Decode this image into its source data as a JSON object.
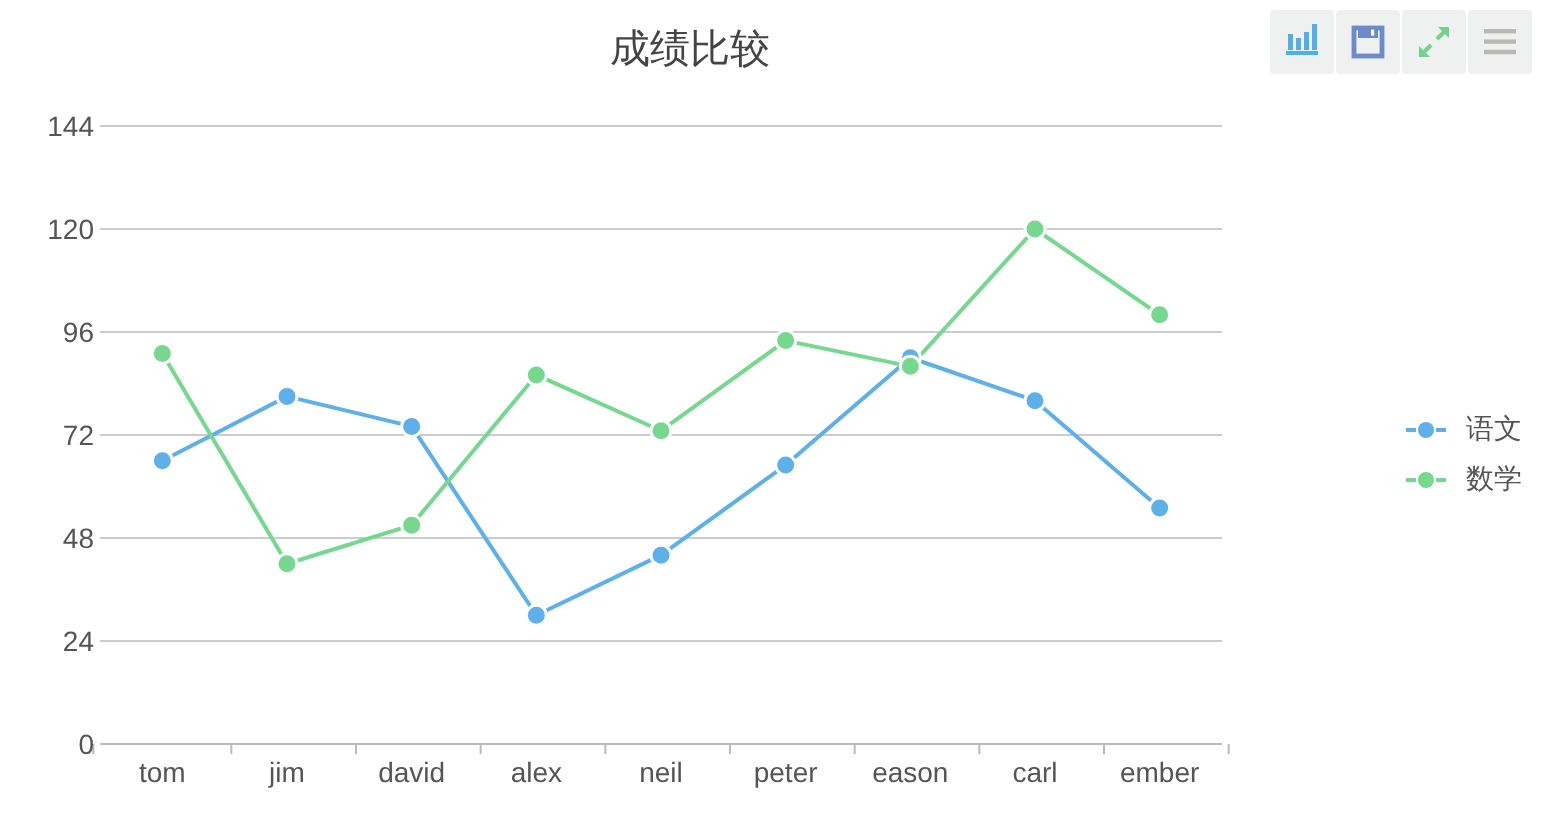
{
  "chart_data": {
    "type": "line",
    "title": "成绩比较",
    "categories": [
      "tom",
      "jim",
      "david",
      "alex",
      "neil",
      "peter",
      "eason",
      "carl",
      "ember"
    ],
    "series": [
      {
        "name": "语文",
        "color": "#5eb0ea",
        "values": [
          66,
          81,
          74,
          30,
          44,
          65,
          90,
          80,
          55
        ]
      },
      {
        "name": "数学",
        "color": "#76d88f",
        "values": [
          91,
          42,
          51,
          86,
          73,
          94,
          88,
          120,
          100
        ]
      }
    ],
    "ylim": [
      0,
      144
    ],
    "yticks": [
      0,
      24,
      48,
      72,
      96,
      120,
      144
    ],
    "grid": "y",
    "legend": "right",
    "marker": "circle",
    "line_style": "solid"
  }
}
